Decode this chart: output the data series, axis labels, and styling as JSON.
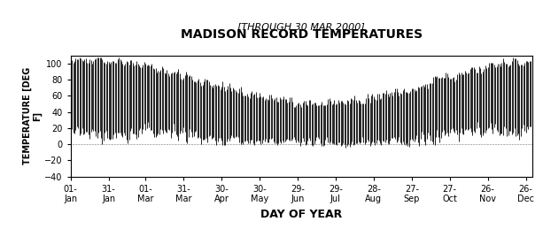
{
  "title": "MADISON RECORD TEMPERATURES",
  "subtitle": "[THROUGH 30 MAR 2000]",
  "xlabel": "DAY OF YEAR",
  "ylabel": "TEMPERATURE [DEG\nF]",
  "ylim": [
    -40,
    110
  ],
  "yticks": [
    -40,
    -20,
    0,
    20,
    40,
    60,
    80,
    100
  ],
  "background_color": "#ffffff",
  "line_color": "#000000",
  "figsize": [
    6.13,
    2.85
  ],
  "dpi": 100,
  "xtick_labels": [
    "01-\nJan",
    "31-\nJan",
    "01-\nMar",
    "31-\nMar",
    "30-\nApr",
    "30-\nMay",
    "29-\nJun",
    "29-\nJul",
    "28-\nAug",
    "27-\nSep",
    "27-\nOct",
    "26-\nNov",
    "26-\nDec"
  ],
  "xtick_days": [
    1,
    31,
    60,
    90,
    120,
    150,
    180,
    210,
    240,
    270,
    300,
    330,
    360
  ]
}
